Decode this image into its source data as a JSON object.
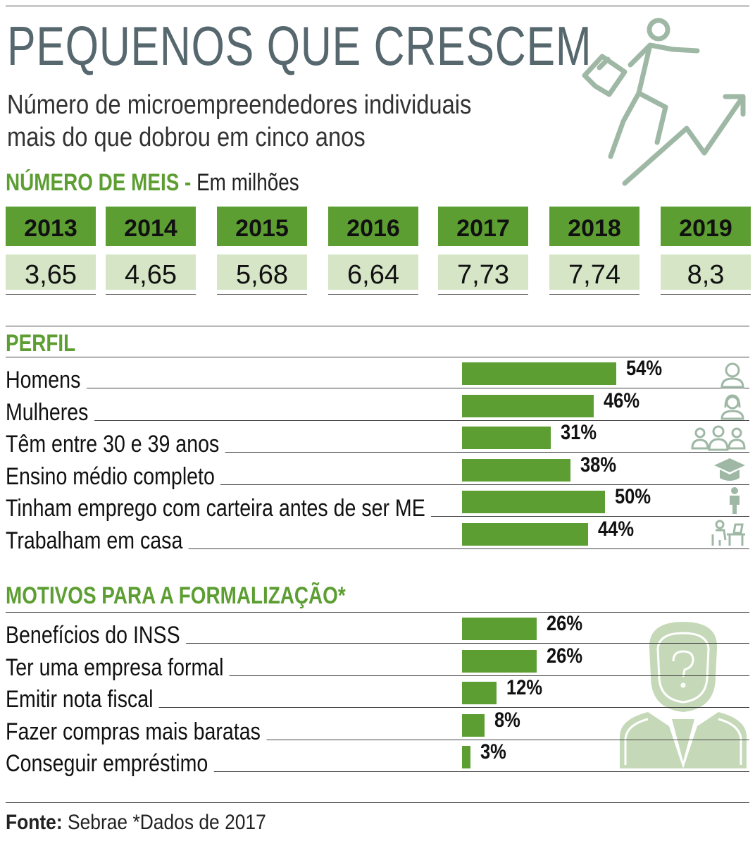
{
  "title": "PEQUENOS QUE CRESCEM",
  "subtitle_lines": [
    "Número de microempreendedores individuais",
    "mais do que dobrou em cinco anos"
  ],
  "meis_section": {
    "label": "NÚMERO DE MEIS -",
    "unit": "Em milhões"
  },
  "perfil_section": "PERFIL",
  "motivos_section": "MOTIVOS PARA A FORMALIZAÇÃO*",
  "source": {
    "label": "Fonte:",
    "text": "Sebrae *Dados de 2017"
  },
  "colors": {
    "accent": "#5d9e33",
    "light": "#d5e5c6",
    "title": "#56676e",
    "icon": "#9fb8a6"
  },
  "icons": [
    "climbing-businessman-icon",
    "man-icon",
    "woman-icon",
    "group-icon",
    "graduation-cap-icon",
    "employee-icon",
    "home-office-icon",
    "question-head-icon"
  ],
  "chart_data": [
    {
      "type": "table",
      "categories": [
        "2013",
        "2014",
        "2015",
        "2016",
        "2017",
        "2018",
        "2019"
      ],
      "values": [
        3.65,
        4.65,
        5.68,
        6.64,
        7.73,
        7.74,
        8.3
      ],
      "display_values": [
        "3,65",
        "4,65",
        "5,68",
        "6,64",
        "7,73",
        "7,74",
        "8,3"
      ]
    },
    {
      "type": "bar",
      "categories": [
        "Homens",
        "Mulheres",
        "Têm entre 30 e 39 anos",
        "Ensino médio completo",
        "Tinham emprego com carteira antes de ser ME",
        "Trabalham em casa"
      ],
      "values": [
        54,
        46,
        31,
        38,
        50,
        44
      ],
      "labels": [
        "54%",
        "46%",
        "31%",
        "38%",
        "50%",
        "44%"
      ]
    },
    {
      "type": "bar",
      "categories": [
        "Benefícios do INSS",
        "Ter uma empresa formal",
        "Emitir nota fiscal",
        "Fazer compras mais baratas",
        "Conseguir empréstimo"
      ],
      "values": [
        26,
        26,
        12,
        8,
        3
      ],
      "labels": [
        "26%",
        "26%",
        "12%",
        "8%",
        "3%"
      ]
    }
  ]
}
